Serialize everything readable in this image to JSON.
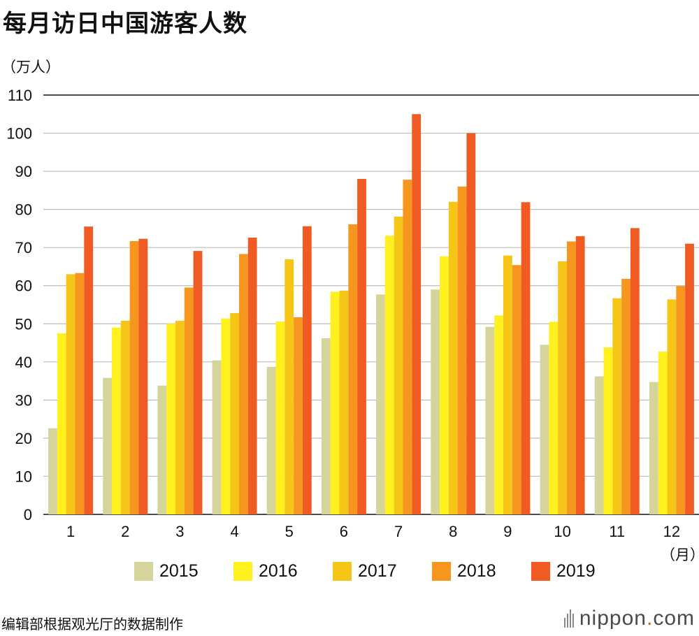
{
  "header": {
    "title": "每月访日中国游客人数",
    "y_unit": "（万人）",
    "x_unit": "（月）"
  },
  "footer": {
    "source": "编辑部根据观光厅的数据制作",
    "logo_main": "nippon",
    "logo_dot": ".",
    "logo_tail": "com"
  },
  "chart_data": {
    "type": "bar",
    "categories": [
      "1",
      "2",
      "3",
      "4",
      "5",
      "6",
      "7",
      "8",
      "9",
      "10",
      "11",
      "12"
    ],
    "ylim": [
      0,
      110
    ],
    "yticks": [
      0,
      10,
      20,
      30,
      40,
      50,
      60,
      70,
      80,
      90,
      100,
      110
    ],
    "grid": true,
    "legend_position": "bottom",
    "series": [
      {
        "name": "2015",
        "color": "#d4d49b",
        "values": [
          22.6,
          35.8,
          33.8,
          40.4,
          38.7,
          46.2,
          57.7,
          59.0,
          49.2,
          44.5,
          36.2,
          34.7
        ]
      },
      {
        "name": "2016",
        "color": "#fff01e",
        "values": [
          47.5,
          49.0,
          50.0,
          51.4,
          50.6,
          58.4,
          73.1,
          67.7,
          52.2,
          50.5,
          43.8,
          42.7
        ]
      },
      {
        "name": "2017",
        "color": "#f5c518",
        "values": [
          63.0,
          50.8,
          50.8,
          52.8,
          66.9,
          58.7,
          78.1,
          82.0,
          67.9,
          66.4,
          56.7,
          56.4
        ]
      },
      {
        "name": "2018",
        "color": "#f7961e",
        "values": [
          63.3,
          71.7,
          59.5,
          68.3,
          51.7,
          76.1,
          87.8,
          86.0,
          65.4,
          71.6,
          61.8,
          59.9
        ]
      },
      {
        "name": "2019",
        "color": "#f05a23",
        "values": [
          75.5,
          72.3,
          69.1,
          72.6,
          75.6,
          88.0,
          105.0,
          100.0,
          81.9,
          73.0,
          75.1,
          71.0
        ]
      }
    ]
  }
}
